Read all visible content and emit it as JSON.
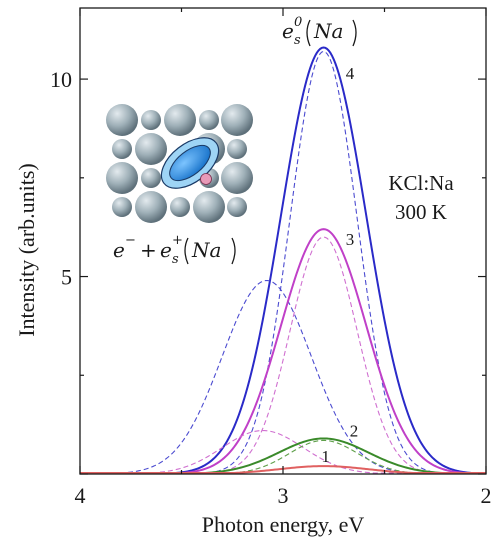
{
  "chart_data": {
    "type": "line",
    "xlabel": "Photon energy, eV",
    "ylabel": "Intensity (arb.units)",
    "xlim": [
      4,
      2
    ],
    "ylim": [
      0,
      11.8
    ],
    "x_reversed": true,
    "x_ticks": [
      4,
      3,
      2
    ],
    "y_ticks": [
      5,
      10
    ],
    "grid": false,
    "annotations": {
      "sample": "KCl:Na",
      "temperature": "300 K",
      "top_label": {
        "base": "e",
        "sub": "s",
        "sup": "0",
        "arg": "Na"
      },
      "inset_label": {
        "e": "e",
        "minus": "−",
        "plus": "+",
        "es": "e",
        "sub": "s",
        "sup": "+",
        "arg": "Na"
      }
    },
    "series": [
      {
        "name": "4",
        "color": "#2a2ac8",
        "style": "solid",
        "fit": [
          {
            "center": 2.8,
            "amp": 10.8,
            "sigma": 0.21
          }
        ]
      },
      {
        "name": "",
        "color": "#4b4bd0",
        "style": "dashed",
        "fit": [
          {
            "center": 3.08,
            "amp": 4.9,
            "sigma": 0.22
          }
        ]
      },
      {
        "name": "",
        "color": "#4b4bd0",
        "style": "dashed",
        "fit": [
          {
            "center": 2.8,
            "amp": 10.7,
            "sigma": 0.165
          }
        ]
      },
      {
        "name": "3",
        "color": "#c040c8",
        "style": "solid",
        "fit": [
          {
            "center": 2.8,
            "amp": 6.2,
            "sigma": 0.21
          }
        ]
      },
      {
        "name": "",
        "color": "#d070d0",
        "style": "dashed",
        "fit": [
          {
            "center": 3.1,
            "amp": 1.1,
            "sigma": 0.2
          }
        ]
      },
      {
        "name": "",
        "color": "#d070d0",
        "style": "dashed",
        "fit": [
          {
            "center": 2.8,
            "amp": 6.0,
            "sigma": 0.165
          }
        ]
      },
      {
        "name": "2",
        "color": "#3a8a2a",
        "style": "solid",
        "fit": [
          {
            "center": 2.8,
            "amp": 0.9,
            "sigma": 0.22
          }
        ]
      },
      {
        "name": "",
        "color": "#5fa04a",
        "style": "dashed",
        "fit": [
          {
            "center": 2.8,
            "amp": 0.85,
            "sigma": 0.17
          }
        ]
      },
      {
        "name": "1",
        "color": "#e06060",
        "style": "solid",
        "fit": [
          {
            "center": 2.8,
            "amp": 0.2,
            "sigma": 0.22
          }
        ]
      }
    ]
  }
}
